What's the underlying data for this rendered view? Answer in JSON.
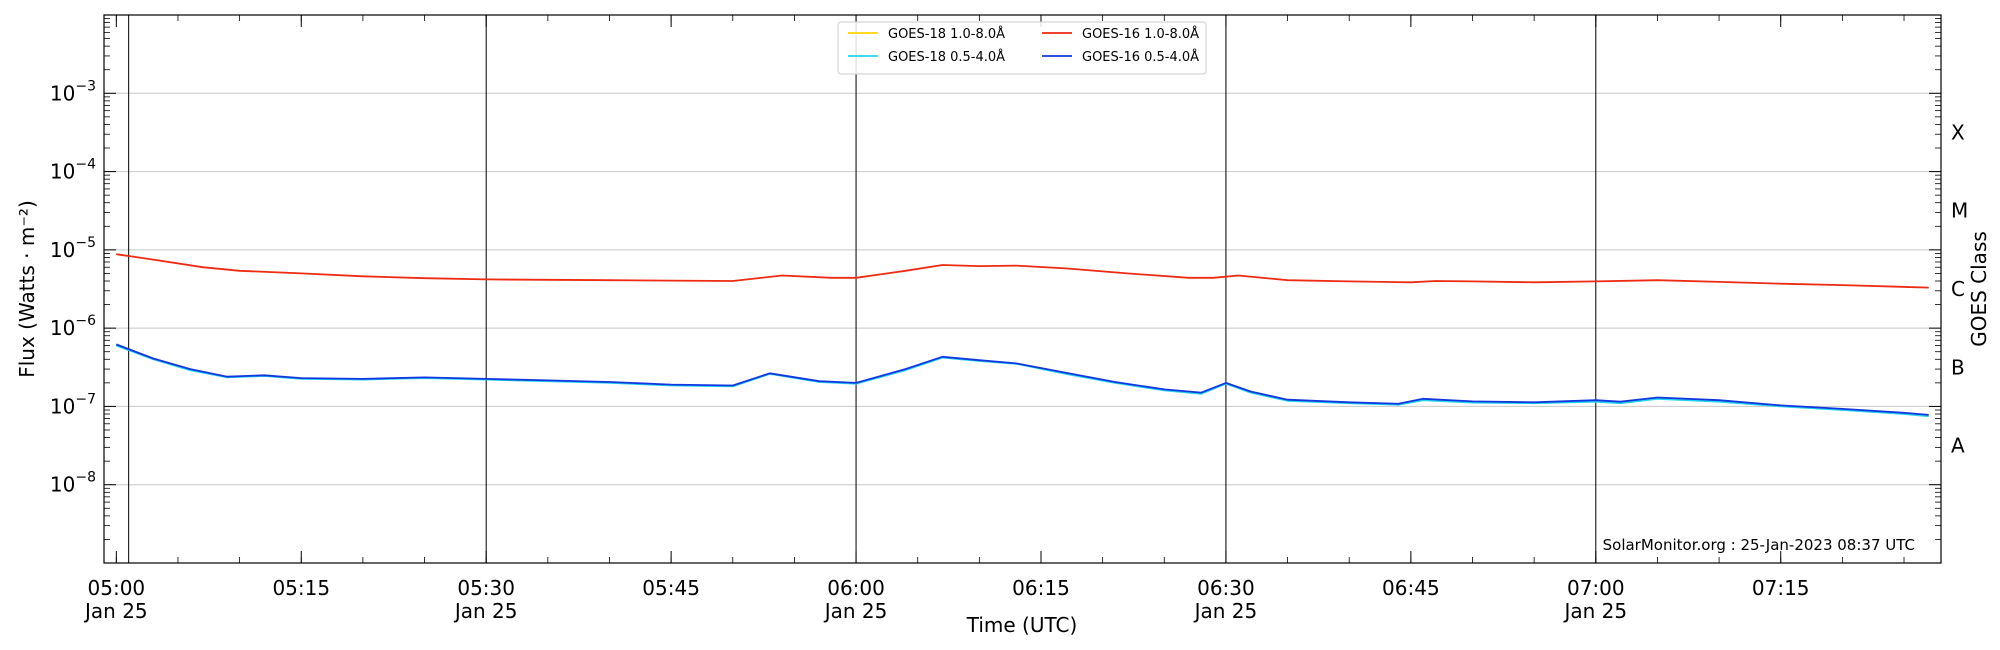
{
  "chart_data": {
    "type": "line",
    "xlabel": "Time (UTC)",
    "ylabel": "Flux (Watts · m⁻²)",
    "ylabel_right": "GOES Class",
    "y_scale": "log",
    "ylim": [
      1e-09,
      0.01
    ],
    "xlim": [
      "2023-01-25T04:59",
      "2023-01-25T07:28"
    ],
    "grid": true,
    "legend_position": "top-center",
    "credit": "SolarMonitor.org : 25-Jan-2023 08:37 UTC",
    "x_ticks": [
      {
        "time": "05:00",
        "line1": "05:00",
        "line2": "Jan 25"
      },
      {
        "time": "05:15",
        "line1": "05:15",
        "line2": ""
      },
      {
        "time": "05:30",
        "line1": "05:30",
        "line2": "Jan 25"
      },
      {
        "time": "05:45",
        "line1": "05:45",
        "line2": ""
      },
      {
        "time": "06:00",
        "line1": "06:00",
        "line2": "Jan 25"
      },
      {
        "time": "06:15",
        "line1": "06:15",
        "line2": ""
      },
      {
        "time": "06:30",
        "line1": "06:30",
        "line2": "Jan 25"
      },
      {
        "time": "06:45",
        "line1": "06:45",
        "line2": ""
      },
      {
        "time": "07:00",
        "line1": "07:00",
        "line2": "Jan 25"
      },
      {
        "time": "07:15",
        "line1": "07:15",
        "line2": ""
      }
    ],
    "y_ticks": [
      {
        "value": 1e-08,
        "base": "10",
        "exp": "−8"
      },
      {
        "value": 1e-07,
        "base": "10",
        "exp": "−7"
      },
      {
        "value": 1e-06,
        "base": "10",
        "exp": "−6"
      },
      {
        "value": 1e-05,
        "base": "10",
        "exp": "−5"
      },
      {
        "value": 0.0001,
        "base": "10",
        "exp": "−4"
      },
      {
        "value": 0.001,
        "base": "10",
        "exp": "−3"
      }
    ],
    "class_labels": [
      {
        "label": "A",
        "value": 3.16e-08
      },
      {
        "label": "B",
        "value": 3.16e-07
      },
      {
        "label": "C",
        "value": 3.16e-06
      },
      {
        "label": "M",
        "value": 3.16e-05
      },
      {
        "label": "X",
        "value": 0.000316
      }
    ],
    "vertical_lines": [
      "05:01",
      "05:30",
      "06:00",
      "06:30",
      "07:00"
    ],
    "series": [
      {
        "name": "GOES-18 1.0-8.0Å",
        "color": "#ffd400",
        "points": []
      },
      {
        "name": "GOES-18 0.5-4.0Å",
        "color": "#22d4ee",
        "points": [
          [
            "05:00",
            6e-07
          ],
          [
            "05:03",
            4e-07
          ],
          [
            "05:06",
            2.9e-07
          ],
          [
            "05:09",
            2.35e-07
          ],
          [
            "05:12",
            2.45e-07
          ],
          [
            "05:15",
            2.25e-07
          ],
          [
            "05:20",
            2.2e-07
          ],
          [
            "05:25",
            2.3e-07
          ],
          [
            "05:30",
            2.2e-07
          ],
          [
            "05:35",
            2.1e-07
          ],
          [
            "05:40",
            2e-07
          ],
          [
            "05:45",
            1.85e-07
          ],
          [
            "05:50",
            1.8e-07
          ],
          [
            "05:53",
            2.6e-07
          ],
          [
            "05:57",
            2.05e-07
          ],
          [
            "06:00",
            1.95e-07
          ],
          [
            "06:04",
            2.9e-07
          ],
          [
            "06:07",
            4.2e-07
          ],
          [
            "06:10",
            3.8e-07
          ],
          [
            "06:13",
            3.5e-07
          ],
          [
            "06:17",
            2.6e-07
          ],
          [
            "06:21",
            2e-07
          ],
          [
            "06:25",
            1.6e-07
          ],
          [
            "06:28",
            1.45e-07
          ],
          [
            "06:30",
            1.95e-07
          ],
          [
            "06:32",
            1.5e-07
          ],
          [
            "06:35",
            1.18e-07
          ],
          [
            "06:40",
            1.1e-07
          ],
          [
            "06:44",
            1.05e-07
          ],
          [
            "06:46",
            1.2e-07
          ],
          [
            "06:50",
            1.12e-07
          ],
          [
            "06:55",
            1.1e-07
          ],
          [
            "07:00",
            1.15e-07
          ],
          [
            "07:02",
            1.1e-07
          ],
          [
            "07:05",
            1.25e-07
          ],
          [
            "07:10",
            1.15e-07
          ],
          [
            "07:15",
            1e-07
          ],
          [
            "07:20",
            9e-08
          ],
          [
            "07:25",
            8e-08
          ],
          [
            "07:27",
            7.5e-08
          ]
        ]
      },
      {
        "name": "GOES-16 1.0-8.0Å",
        "color": "#ee2a12",
        "points": [
          [
            "05:00",
            8.8e-06
          ],
          [
            "05:03",
            7.5e-06
          ],
          [
            "05:07",
            6e-06
          ],
          [
            "05:10",
            5.4e-06
          ],
          [
            "05:15",
            5e-06
          ],
          [
            "05:20",
            4.6e-06
          ],
          [
            "05:25",
            4.35e-06
          ],
          [
            "05:30",
            4.2e-06
          ],
          [
            "05:35",
            4.15e-06
          ],
          [
            "05:40",
            4.1e-06
          ],
          [
            "05:45",
            4.05e-06
          ],
          [
            "05:50",
            4e-06
          ],
          [
            "05:54",
            4.7e-06
          ],
          [
            "05:58",
            4.4e-06
          ],
          [
            "06:00",
            4.4e-06
          ],
          [
            "06:04",
            5.4e-06
          ],
          [
            "06:07",
            6.4e-06
          ],
          [
            "06:10",
            6.2e-06
          ],
          [
            "06:13",
            6.3e-06
          ],
          [
            "06:17",
            5.8e-06
          ],
          [
            "06:22",
            5e-06
          ],
          [
            "06:27",
            4.4e-06
          ],
          [
            "06:29",
            4.4e-06
          ],
          [
            "06:31",
            4.7e-06
          ],
          [
            "06:35",
            4.1e-06
          ],
          [
            "06:40",
            3.95e-06
          ],
          [
            "06:45",
            3.85e-06
          ],
          [
            "06:47",
            4e-06
          ],
          [
            "06:50",
            3.95e-06
          ],
          [
            "06:55",
            3.85e-06
          ],
          [
            "07:00",
            3.95e-06
          ],
          [
            "07:05",
            4.1e-06
          ],
          [
            "07:10",
            3.9e-06
          ],
          [
            "07:15",
            3.7e-06
          ],
          [
            "07:20",
            3.55e-06
          ],
          [
            "07:27",
            3.3e-06
          ]
        ]
      },
      {
        "name": "GOES-16 0.5-4.0Å",
        "color": "#1237e0",
        "points": [
          [
            "05:00",
            6.2e-07
          ],
          [
            "05:03",
            4.1e-07
          ],
          [
            "05:06",
            3e-07
          ],
          [
            "05:09",
            2.4e-07
          ],
          [
            "05:12",
            2.5e-07
          ],
          [
            "05:15",
            2.3e-07
          ],
          [
            "05:20",
            2.25e-07
          ],
          [
            "05:25",
            2.35e-07
          ],
          [
            "05:30",
            2.25e-07
          ],
          [
            "05:35",
            2.15e-07
          ],
          [
            "05:40",
            2.05e-07
          ],
          [
            "05:45",
            1.9e-07
          ],
          [
            "05:50",
            1.85e-07
          ],
          [
            "05:53",
            2.65e-07
          ],
          [
            "05:57",
            2.1e-07
          ],
          [
            "06:00",
            2e-07
          ],
          [
            "06:04",
            3e-07
          ],
          [
            "06:07",
            4.3e-07
          ],
          [
            "06:10",
            3.9e-07
          ],
          [
            "06:13",
            3.55e-07
          ],
          [
            "06:17",
            2.7e-07
          ],
          [
            "06:21",
            2.05e-07
          ],
          [
            "06:25",
            1.65e-07
          ],
          [
            "06:28",
            1.5e-07
          ],
          [
            "06:30",
            2e-07
          ],
          [
            "06:32",
            1.55e-07
          ],
          [
            "06:35",
            1.22e-07
          ],
          [
            "06:40",
            1.13e-07
          ],
          [
            "06:44",
            1.08e-07
          ],
          [
            "06:46",
            1.25e-07
          ],
          [
            "06:50",
            1.16e-07
          ],
          [
            "06:55",
            1.13e-07
          ],
          [
            "07:00",
            1.2e-07
          ],
          [
            "07:02",
            1.15e-07
          ],
          [
            "07:05",
            1.3e-07
          ],
          [
            "07:10",
            1.2e-07
          ],
          [
            "07:15",
            1.03e-07
          ],
          [
            "07:20",
            9.3e-08
          ],
          [
            "07:25",
            8.3e-08
          ],
          [
            "07:27",
            7.8e-08
          ]
        ]
      }
    ]
  }
}
